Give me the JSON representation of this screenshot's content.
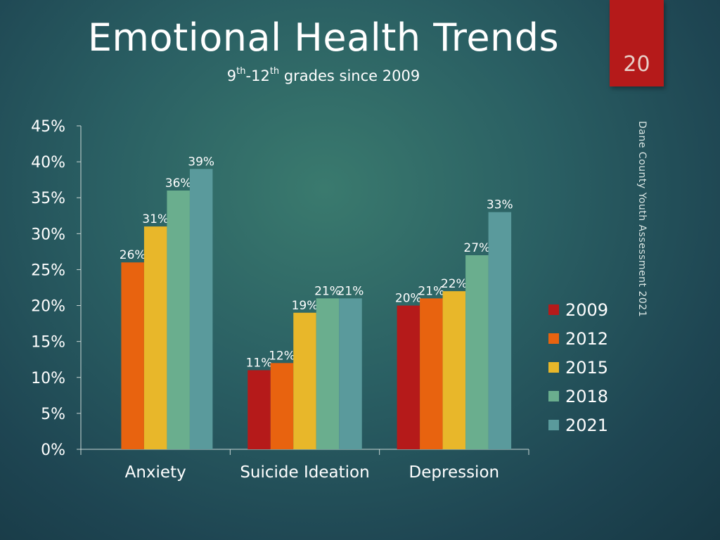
{
  "slide": {
    "title": "Emotional Health Trends",
    "subtitle_parts": [
      "9",
      "th",
      "-12",
      "th",
      " grades since 2009"
    ],
    "page_number": "20",
    "source": "Dane County Youth Assessment 2021"
  },
  "colors": {
    "badge": "#b51a1a",
    "series": [
      "#b51a1a",
      "#e8630f",
      "#e8b72a",
      "#6aae8e",
      "#5a9a9c"
    ]
  },
  "chart_data": {
    "type": "bar",
    "categories": [
      "Anxiety",
      "Suicide Ideation",
      "Depression"
    ],
    "series": [
      {
        "name": "2009",
        "values": [
          null,
          11,
          20
        ]
      },
      {
        "name": "2012",
        "values": [
          26,
          12,
          21
        ]
      },
      {
        "name": "2015",
        "values": [
          31,
          19,
          22
        ]
      },
      {
        "name": "2018",
        "values": [
          36,
          21,
          27
        ]
      },
      {
        "name": "2021",
        "values": [
          39,
          21,
          33
        ]
      }
    ],
    "ylim": [
      0,
      45
    ],
    "yticks": [
      "0%",
      "5%",
      "10%",
      "15%",
      "20%",
      "25%",
      "30%",
      "35%",
      "40%",
      "45%"
    ],
    "value_suffix": "%",
    "legend_position": "right",
    "grid": false
  }
}
